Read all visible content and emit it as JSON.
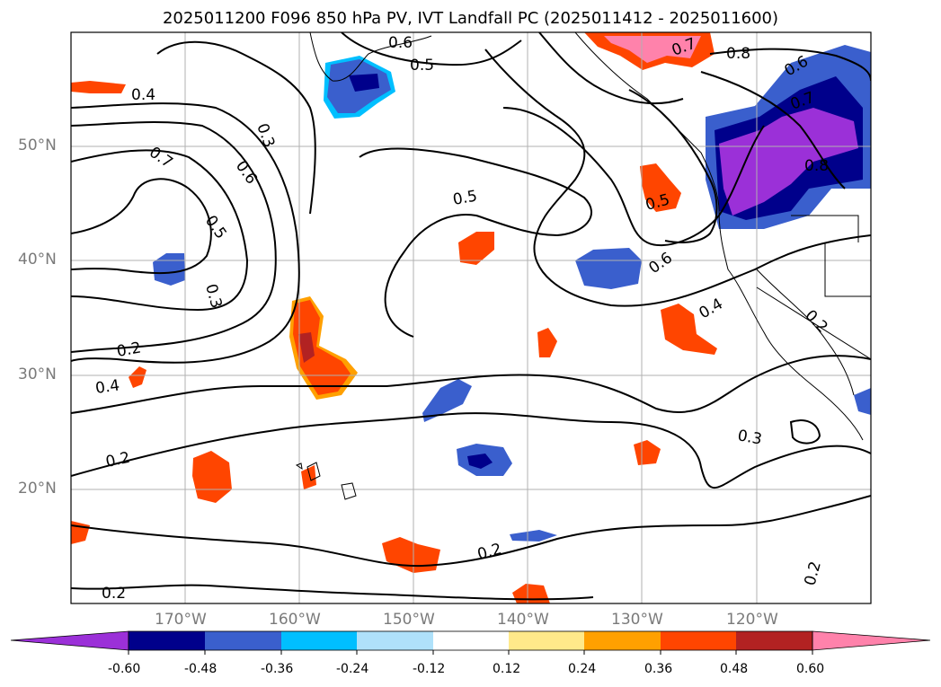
{
  "title": "2025011200 F096 850 hPa PV, IVT Landfall PC (2025011412 - 2025011600)",
  "axes": {
    "lat_labels": [
      "50°N",
      "40°N",
      "30°N",
      "20°N"
    ],
    "lon_labels": [
      "170°W",
      "160°W",
      "150°W",
      "140°W",
      "130°W",
      "120°W"
    ],
    "lat_range": [
      10,
      60
    ],
    "lon_range": [
      -180,
      -110
    ],
    "grid": true
  },
  "contour_labels": [
    "0.4",
    "0.3",
    "0.7",
    "0.6",
    "0.5",
    "0.3",
    "0.2",
    "0.4",
    "0.2",
    "0.2",
    "0.6",
    "0.5",
    "0.5",
    "0.8",
    "0.6",
    "0.7",
    "0.7",
    "0.8",
    "0.5",
    "0.6",
    "0.4",
    "0.2",
    "0.3",
    "0.2",
    "0.2"
  ],
  "colorbar": {
    "ticks": [
      "-0.60",
      "-0.48",
      "-0.36",
      "-0.24",
      "-0.12",
      "0.12",
      "0.24",
      "0.36",
      "0.48",
      "0.60"
    ],
    "colors": [
      "#9b30d8",
      "#00008b",
      "#3a5fcd",
      "#00bfff",
      "#afe1fa",
      "#ffffff",
      "#ffe98a",
      "#ffa000",
      "#ff4500",
      "#b22222",
      "#ff82ab"
    ]
  },
  "chart_data": {
    "type": "contour",
    "field": "850 hPa PV",
    "overlay": "IVT Landfall PC",
    "levels": [
      -0.6,
      -0.48,
      -0.36,
      -0.24,
      -0.12,
      0.12,
      0.24,
      0.36,
      0.48,
      0.6
    ],
    "lat_range": [
      10,
      60
    ],
    "lon_range": [
      -180,
      -110
    ]
  }
}
